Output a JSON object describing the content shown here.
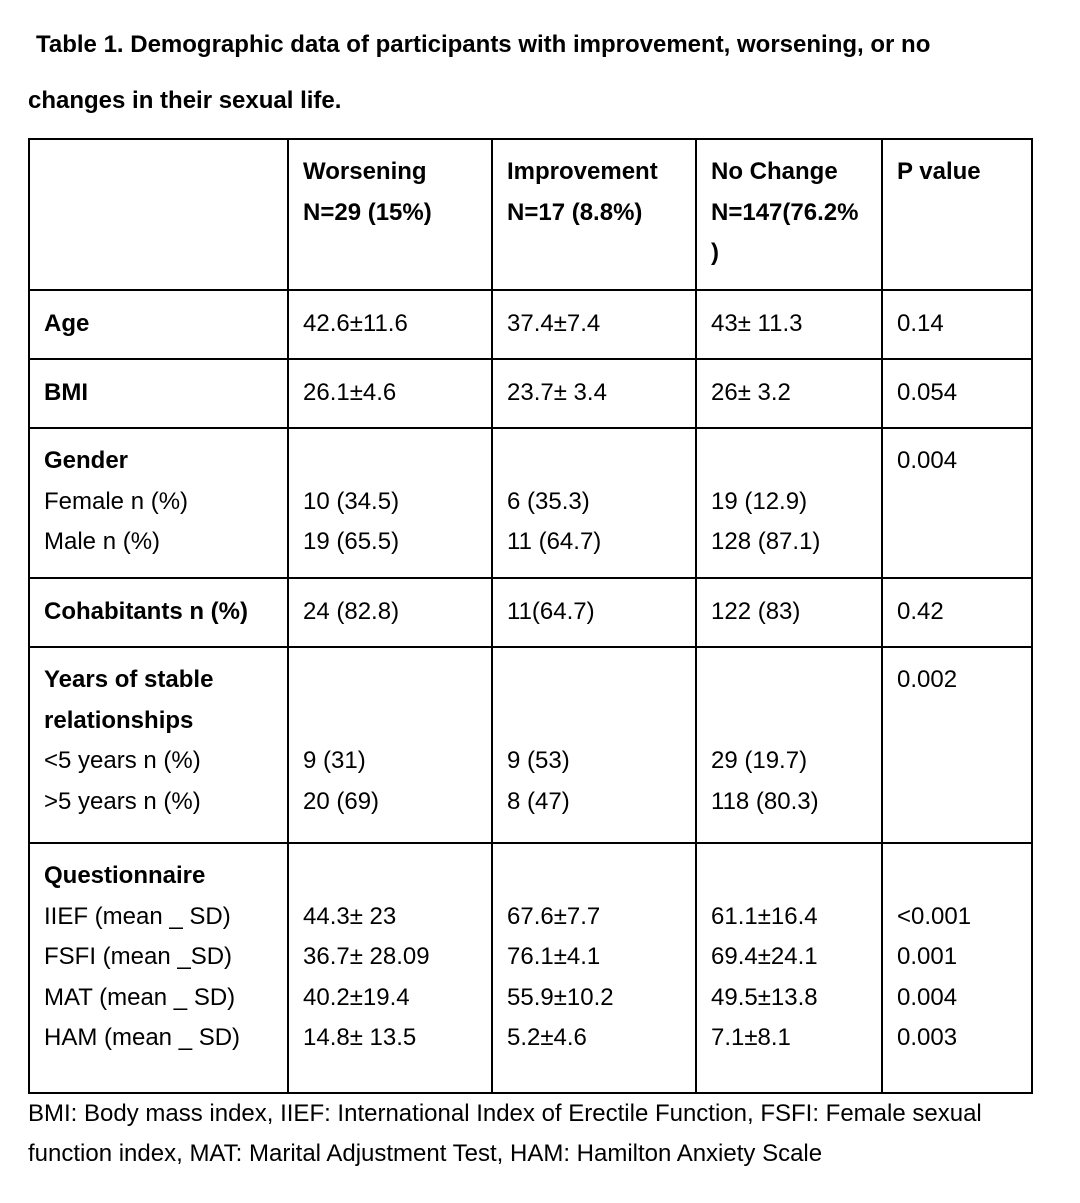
{
  "title": {
    "line1": "Table 1. Demographic data of participants with improvement, worsening, or no",
    "line2": "changes in their sexual life."
  },
  "headers": {
    "worsening": [
      "Worsening",
      "N=29 (15%)"
    ],
    "improvement": [
      "Improvement",
      "N=17 (8.8%)"
    ],
    "nochange": [
      "No Change",
      "N=147(76.2%",
      ")"
    ],
    "pvalue": "P value"
  },
  "rows": {
    "age": {
      "label": "Age",
      "worsening": "42.6±11.6",
      "improvement": "37.4±7.4",
      "nochange": "43± 11.3",
      "p": "0.14"
    },
    "bmi": {
      "label": "BMI",
      "worsening": "26.1±4.6",
      "improvement": "23.7± 3.4",
      "nochange": "26± 3.2",
      "p": "0.054"
    },
    "gender": {
      "label": "Gender",
      "female_label": "Female n (%)",
      "male_label": "Male n (%)",
      "worsening": [
        "10 (34.5)",
        "19 (65.5)"
      ],
      "improvement": [
        "6 (35.3)",
        "11 (64.7)"
      ],
      "nochange": [
        "19 (12.9)",
        "128 (87.1)"
      ],
      "p": "0.004"
    },
    "cohabitants": {
      "label": "Cohabitants n (%)",
      "worsening": "24 (82.8)",
      "improvement": "11(64.7)",
      "nochange": "122 (83)",
      "p": "0.42"
    },
    "years": {
      "label1": "Years of stable",
      "label2": "relationships",
      "lt5_label": "<5 years n (%)",
      "gt5_label": ">5 years n (%)",
      "worsening": [
        "9 (31)",
        "20 (69)"
      ],
      "improvement": [
        "9 (53)",
        "8 (47)"
      ],
      "nochange": [
        "29 (19.7)",
        "118 (80.3)"
      ],
      "p": "0.002"
    },
    "questionnaire": {
      "label": "Questionnaire",
      "items": [
        "IIEF (mean _ SD)",
        "FSFI (mean _SD)",
        "MAT (mean _ SD)",
        "HAM (mean _ SD)"
      ],
      "worsening": [
        "44.3± 23",
        "36.7± 28.09",
        "40.2±19.4",
        "14.8± 13.5"
      ],
      "improvement": [
        "67.6±7.7",
        "76.1±4.1",
        "55.9±10.2",
        "5.2±4.6"
      ],
      "nochange": [
        "61.1±16.4",
        "69.4±24.1",
        "49.5±13.8",
        "7.1±8.1"
      ],
      "p": [
        "<0.001",
        "0.001",
        "0.004",
        "0.003"
      ]
    }
  },
  "footer": {
    "line1": "BMI: Body mass index, IIEF: International Index of Erectile Function, FSFI: Female sexual",
    "line2": "function index, MAT: Marital Adjustment Test, HAM: Hamilton Anxiety Scale"
  }
}
